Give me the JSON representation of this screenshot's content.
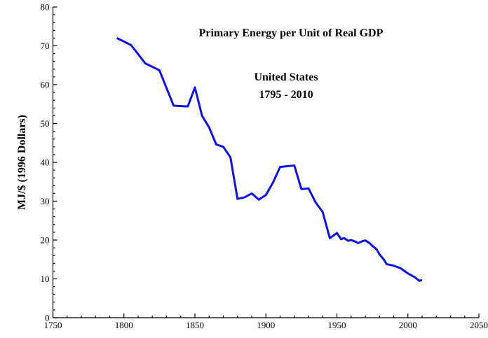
{
  "chart_data": {
    "type": "line",
    "title": "Primary Energy per Unit of  Real GDP",
    "annotations": [
      "United States",
      "1795 - 2010"
    ],
    "y_label": "MJ/$ (1996 Dollars)",
    "x": [
      1795,
      1805,
      1815,
      1825,
      1835,
      1845,
      1850,
      1855,
      1860,
      1865,
      1870,
      1875,
      1880,
      1885,
      1890,
      1895,
      1900,
      1905,
      1910,
      1915,
      1920,
      1925,
      1930,
      1935,
      1940,
      1945,
      1950,
      1953,
      1955,
      1958,
      1960,
      1963,
      1965,
      1968,
      1970,
      1973,
      1975,
      1978,
      1980,
      1983,
      1985,
      1990,
      1995,
      2000,
      2005,
      2008,
      2010
    ],
    "series": [
      {
        "name": "United States",
        "color": "#1010e8",
        "values": [
          72,
          70.2,
          65.5,
          63.7,
          54.6,
          54.4,
          59.3,
          52,
          49,
          44.6,
          44,
          41.3,
          30.6,
          31,
          32,
          30.4,
          31.6,
          34.8,
          38.8,
          39,
          39.2,
          33.1,
          33.3,
          29.7,
          27.2,
          20.5,
          21.8,
          20.2,
          20.5,
          19.8,
          20,
          19.6,
          19.2,
          19.7,
          19.9,
          19.2,
          18.5,
          17.6,
          16.3,
          15,
          13.8,
          13.4,
          12.7,
          11.4,
          10.4,
          9.5,
          9.7
        ]
      }
    ],
    "xlim": [
      1750,
      2050
    ],
    "xticks": [
      1750,
      1800,
      1850,
      1900,
      1950,
      2000,
      2050
    ],
    "ylim": [
      0,
      80
    ],
    "yticks": [
      0,
      10,
      20,
      30,
      40,
      50,
      60,
      70,
      80
    ],
    "grid": false
  }
}
